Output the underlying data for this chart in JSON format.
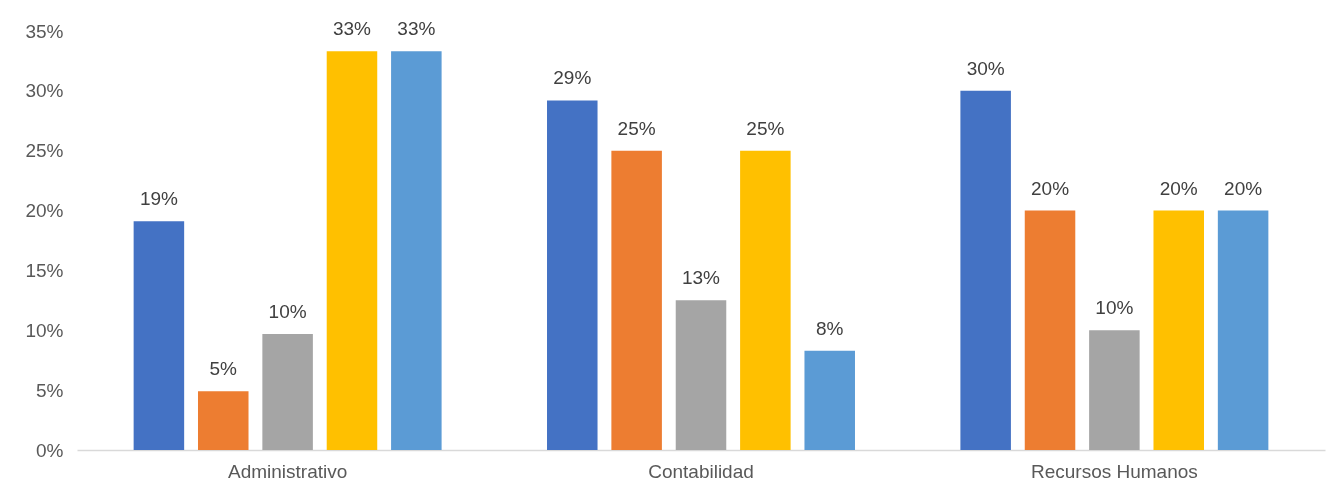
{
  "chart_data": {
    "type": "bar",
    "categories": [
      "Administrativo",
      "Contabilidad",
      "Recursos Humanos"
    ],
    "series": [
      {
        "color": "#4472c4",
        "values": [
          19.1,
          29.2,
          30
        ],
        "value_labels": [
          "19%",
          "29%",
          "30%"
        ]
      },
      {
        "color": "#ed7d31",
        "values": [
          4.9,
          25,
          20
        ],
        "value_labels": [
          "5%",
          "25%",
          "20%"
        ]
      },
      {
        "color": "#a5a5a5",
        "values": [
          9.7,
          12.5,
          10
        ],
        "value_labels": [
          "10%",
          "13%",
          "10%"
        ]
      },
      {
        "color": "#ffc000",
        "values": [
          33.3,
          25,
          20
        ],
        "value_labels": [
          "33%",
          "25%",
          "20%"
        ]
      },
      {
        "color": "#5b9bd5",
        "values": [
          33.3,
          8.3,
          20
        ],
        "value_labels": [
          "33%",
          "8%",
          "20%"
        ]
      }
    ],
    "ylim": [
      0,
      35
    ],
    "yticks": [
      {
        "value": 0,
        "label": "0%"
      },
      {
        "value": 5,
        "label": "5%"
      },
      {
        "value": 10,
        "label": "10%"
      },
      {
        "value": 15,
        "label": "15%"
      },
      {
        "value": 20,
        "label": "20%"
      },
      {
        "value": 25,
        "label": "25%"
      },
      {
        "value": 30,
        "label": "30%"
      },
      {
        "value": 35,
        "label": "35%"
      }
    ]
  }
}
